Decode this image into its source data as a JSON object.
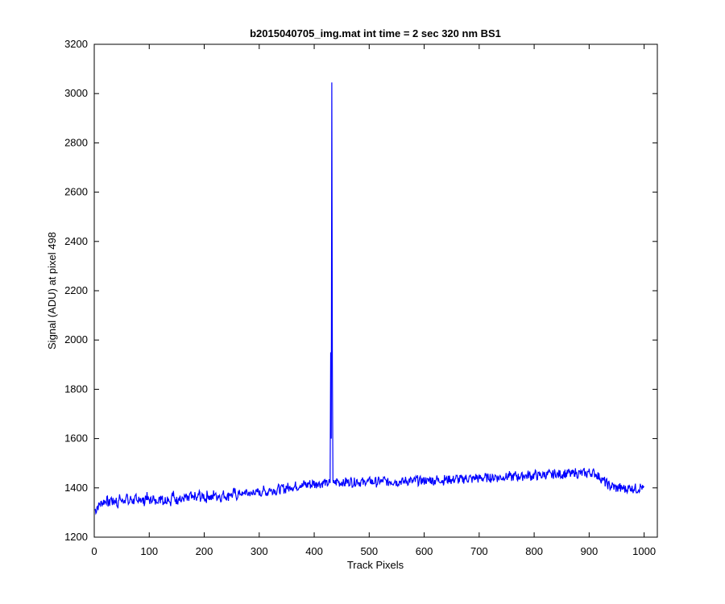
{
  "chart_data": {
    "type": "line",
    "title": "b2015040705_img.mat int time = 2 sec  320 nm BS1",
    "xlabel": "Track Pixels",
    "ylabel": "Signal (ADU) at pixel 498",
    "xlim": [
      0,
      1024
    ],
    "ylim": [
      1200,
      3200
    ],
    "xticks": [
      0,
      100,
      200,
      300,
      400,
      500,
      600,
      700,
      800,
      900,
      1000
    ],
    "yticks": [
      1200,
      1400,
      1600,
      1800,
      2000,
      2200,
      2400,
      2600,
      2800,
      3000,
      3200
    ],
    "grid": false,
    "legend": "none",
    "series": [
      {
        "color": "#0000ff",
        "x_start": 1,
        "x_step": 4,
        "values": [
          1310,
          1325,
          1335,
          1340,
          1345,
          1350,
          1338,
          1355,
          1342,
          1350,
          1332,
          1360,
          1345,
          1352,
          1368,
          1340,
          1355,
          1347,
          1358,
          1335,
          1362,
          1350,
          1344,
          1365,
          1352,
          1348,
          1360,
          1342,
          1355,
          1350,
          1368,
          1346,
          1352,
          1360,
          1344,
          1372,
          1355,
          1350,
          1365,
          1348,
          1358,
          1362,
          1350,
          1370,
          1355,
          1366,
          1352,
          1375,
          1360,
          1368,
          1356,
          1372,
          1362,
          1358,
          1378,
          1365,
          1370,
          1360,
          1375,
          1368,
          1364,
          1378,
          1370,
          1382,
          1366,
          1375,
          1380,
          1370,
          1385,
          1376,
          1380,
          1372,
          1388,
          1378,
          1384,
          1376,
          1392,
          1385,
          1380,
          1395,
          1388,
          1394,
          1386,
          1398,
          1392,
          1400,
          1394,
          1404,
          1398,
          1408,
          1402,
          1410,
          1405,
          1414,
          1408,
          1416,
          1410,
          1418,
          1412,
          1420,
          1414,
          1422,
          1416,
          1418,
          1424,
          1416,
          1420,
          1426,
          1418,
          1422,
          1428,
          1420,
          1424,
          1418,
          1426,
          1422,
          1428,
          1420,
          1424,
          1430,
          1422,
          1426,
          1420,
          1428,
          1424,
          1430,
          1422,
          1426,
          1420,
          1428,
          1424,
          1432,
          1426,
          1422,
          1428,
          1424,
          1430,
          1422,
          1426,
          1428,
          1424,
          1430,
          1426,
          1432,
          1424,
          1428,
          1434,
          1426,
          1430,
          1428,
          1432,
          1426,
          1434,
          1430,
          1428,
          1436,
          1430,
          1434,
          1428,
          1436,
          1432,
          1438,
          1430,
          1434,
          1440,
          1432,
          1436,
          1434,
          1440,
          1436,
          1442,
          1434,
          1438,
          1444,
          1436,
          1440,
          1438,
          1444,
          1440,
          1446,
          1438,
          1442,
          1448,
          1440,
          1444,
          1442,
          1448,
          1444,
          1450,
          1442,
          1446,
          1452,
          1444,
          1448,
          1446,
          1452,
          1448,
          1454,
          1446,
          1450,
          1456,
          1448,
          1452,
          1450,
          1456,
          1452,
          1458,
          1450,
          1454,
          1460,
          1452,
          1456,
          1454,
          1460,
          1456,
          1462,
          1454,
          1458,
          1464,
          1456,
          1460,
          1458,
          1462,
          1456,
          1464,
          1460,
          1462,
          1458,
          1452,
          1444,
          1436,
          1428,
          1420,
          1412,
          1405,
          1408,
          1402,
          1398,
          1404,
          1396,
          1400,
          1394,
          1398,
          1402,
          1396,
          1400,
          1394,
          1398,
          1404,
          1396
        ]
      }
    ],
    "spike": {
      "x": [
        429,
        430,
        431,
        432,
        433,
        434,
        435
      ],
      "y": [
        1420,
        1950,
        1600,
        3045,
        1900,
        1430,
        1420
      ]
    }
  }
}
